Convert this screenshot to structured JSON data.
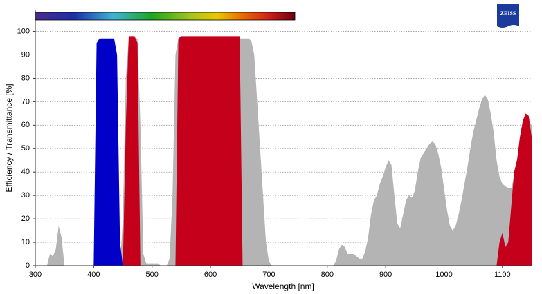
{
  "logo": "ZEISS",
  "chart_data": {
    "type": "area",
    "xlabel": "Wavelength [nm]",
    "ylabel": "Efficiency / Transmittance [%]",
    "xlim": [
      300,
      1150
    ],
    "ylim": [
      0,
      109
    ],
    "xticks": [
      300,
      400,
      500,
      600,
      700,
      800,
      900,
      1000,
      1100
    ],
    "yticks": [
      0,
      10,
      20,
      30,
      40,
      50,
      60,
      70,
      80,
      90,
      100
    ],
    "grid": true,
    "x": [
      300,
      305,
      310,
      315,
      320,
      325,
      330,
      335,
      340,
      345,
      350,
      355,
      360,
      365,
      370,
      375,
      380,
      385,
      390,
      395,
      400,
      405,
      410,
      415,
      420,
      425,
      430,
      435,
      440,
      445,
      450,
      455,
      460,
      465,
      470,
      475,
      480,
      485,
      490,
      495,
      500,
      505,
      510,
      515,
      520,
      525,
      530,
      535,
      540,
      545,
      550,
      555,
      560,
      565,
      570,
      575,
      580,
      585,
      590,
      595,
      600,
      605,
      610,
      615,
      620,
      625,
      630,
      635,
      640,
      645,
      650,
      655,
      660,
      665,
      670,
      675,
      680,
      685,
      690,
      695,
      700,
      705,
      710,
      715,
      720,
      725,
      730,
      735,
      740,
      745,
      750,
      755,
      760,
      765,
      770,
      775,
      780,
      785,
      790,
      795,
      800,
      805,
      810,
      815,
      820,
      825,
      830,
      835,
      840,
      845,
      850,
      855,
      860,
      865,
      870,
      875,
      880,
      885,
      890,
      895,
      900,
      905,
      910,
      915,
      920,
      925,
      930,
      935,
      940,
      945,
      950,
      955,
      960,
      965,
      970,
      975,
      980,
      985,
      990,
      995,
      1000,
      1005,
      1010,
      1015,
      1020,
      1025,
      1030,
      1035,
      1040,
      1045,
      1050,
      1055,
      1060,
      1065,
      1070,
      1075,
      1080,
      1085,
      1090,
      1095,
      1100,
      1105,
      1110,
      1115,
      1120,
      1125,
      1130,
      1135,
      1140,
      1145,
      1150
    ],
    "series": [
      {
        "color": "#b4b4b4",
        "values": [
          0,
          0,
          0,
          0,
          0,
          5,
          4,
          7,
          17,
          12,
          0,
          0,
          0,
          0,
          0,
          0,
          0,
          0,
          0,
          0,
          0,
          0,
          0,
          0,
          0,
          0,
          0,
          0,
          0,
          0,
          20,
          80,
          97,
          97,
          97,
          97,
          60,
          5,
          1,
          1,
          1,
          1,
          1,
          0,
          0,
          0,
          3,
          30,
          90,
          97,
          97,
          97,
          97,
          97,
          97,
          97,
          97,
          97,
          97,
          97,
          97,
          97,
          97,
          97,
          97,
          97,
          97,
          97,
          97,
          97,
          97,
          97,
          97,
          97,
          96,
          90,
          70,
          50,
          30,
          10,
          2,
          0,
          0,
          0,
          0,
          0,
          0,
          0,
          0,
          0,
          0,
          0,
          0,
          0,
          0,
          0,
          0,
          0,
          0,
          0,
          0,
          0,
          0,
          2,
          7,
          9,
          8,
          5,
          5,
          5,
          4,
          3,
          3,
          6,
          12,
          22,
          28,
          30,
          35,
          38,
          42,
          45,
          43,
          30,
          18,
          16,
          22,
          28,
          30,
          29,
          32,
          40,
          46,
          48,
          50,
          52,
          53,
          52,
          48,
          42,
          33,
          24,
          17,
          15,
          17,
          22,
          28,
          35,
          42,
          50,
          57,
          62,
          67,
          71,
          73,
          71,
          65,
          57,
          45,
          38,
          35,
          34,
          33,
          33,
          38,
          45,
          50,
          55,
          60,
          62,
          60
        ]
      },
      {
        "color": "#0000c8",
        "values": [
          0,
          0,
          0,
          0,
          0,
          0,
          0,
          0,
          0,
          0,
          0,
          0,
          0,
          0,
          0,
          0,
          0,
          0,
          0,
          0,
          0,
          95,
          97,
          97,
          97,
          97,
          97,
          97,
          90,
          10,
          0,
          0,
          0,
          0,
          0,
          0,
          0,
          0,
          0,
          0,
          0,
          0,
          0,
          0,
          0,
          0,
          0,
          0,
          0,
          0,
          0,
          0,
          0,
          0,
          0,
          0,
          0,
          0,
          0,
          0,
          0,
          0,
          0,
          0,
          0,
          0,
          0,
          0,
          0,
          0,
          0,
          0,
          0,
          0,
          0,
          0,
          0,
          0,
          0,
          0,
          0,
          0,
          0,
          0,
          0,
          0,
          0,
          0,
          0,
          0,
          0,
          0,
          0,
          0,
          0,
          0,
          0,
          0,
          0,
          0,
          0,
          0,
          0,
          0,
          0,
          0,
          0,
          0,
          0,
          0,
          0,
          0,
          0,
          0,
          0,
          0,
          0,
          0,
          0,
          0,
          0,
          0,
          0,
          0,
          0,
          0,
          0,
          0,
          0,
          0,
          0,
          0,
          0,
          0,
          0,
          0,
          0,
          0,
          0,
          0,
          0,
          0,
          0,
          0,
          0,
          0,
          0,
          0,
          0,
          0,
          0,
          0,
          0,
          0,
          0,
          0,
          0,
          0,
          0,
          0,
          0,
          0,
          0,
          0,
          0,
          0,
          0,
          0,
          0,
          0,
          0
        ]
      },
      {
        "color": "#c4001a",
        "values": [
          0,
          0,
          0,
          0,
          0,
          0,
          0,
          0,
          0,
          0,
          0,
          0,
          0,
          0,
          0,
          0,
          0,
          0,
          0,
          0,
          0,
          0,
          0,
          0,
          0,
          0,
          0,
          0,
          0,
          0,
          0,
          60,
          98,
          98,
          98,
          95,
          0,
          0,
          0,
          0,
          0,
          0,
          0,
          0,
          0,
          0,
          0,
          0,
          0,
          97,
          98,
          98,
          98,
          98,
          98,
          98,
          98,
          98,
          98,
          98,
          98,
          98,
          98,
          98,
          98,
          98,
          98,
          98,
          98,
          98,
          98,
          0,
          0,
          0,
          0,
          0,
          0,
          0,
          0,
          0,
          0,
          0,
          0,
          0,
          0,
          0,
          0,
          0,
          0,
          0,
          0,
          0,
          0,
          0,
          0,
          0,
          0,
          0,
          0,
          0,
          0,
          0,
          0,
          0,
          0,
          0,
          0,
          0,
          0,
          0,
          0,
          0,
          0,
          0,
          0,
          0,
          0,
          0,
          0,
          0,
          0,
          0,
          0,
          0,
          0,
          0,
          0,
          0,
          0,
          0,
          0,
          0,
          0,
          0,
          0,
          0,
          0,
          0,
          0,
          0,
          0,
          0,
          0,
          0,
          0,
          0,
          0,
          0,
          0,
          0,
          0,
          0,
          0,
          0,
          0,
          0,
          0,
          0,
          0,
          10,
          14,
          8,
          10,
          25,
          40,
          45,
          55,
          62,
          65,
          64,
          55
        ]
      }
    ]
  }
}
